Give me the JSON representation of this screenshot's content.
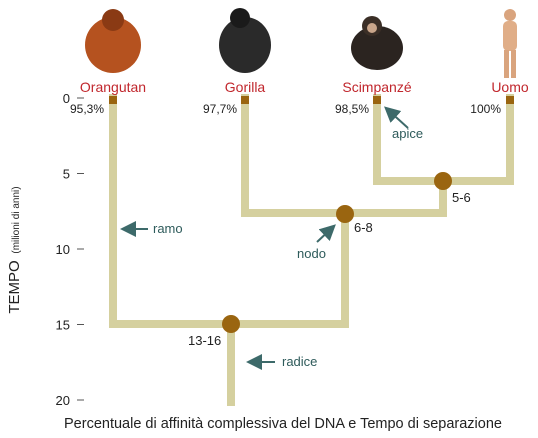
{
  "title": "Percentuale di affinità complessiva del DNA e Tempo di separazione",
  "axis": {
    "label": "TEMPO",
    "unit": "(milioni di anni)",
    "ticks": [
      0,
      5,
      10,
      15,
      20
    ]
  },
  "leaves": [
    {
      "name": "Orangutan",
      "affinity": "95,3%"
    },
    {
      "name": "Gorilla",
      "affinity": "97,7%"
    },
    {
      "name": "Scimpanzé",
      "affinity": "98,5%"
    },
    {
      "name": "Uomo",
      "affinity": "100%"
    }
  ],
  "nodes": [
    {
      "label": "5-6"
    },
    {
      "label": "6-8"
    },
    {
      "label": "13-16"
    }
  ],
  "annotations": {
    "apex": "apice",
    "branch": "ramo",
    "node": "nodo",
    "root": "radice"
  }
}
